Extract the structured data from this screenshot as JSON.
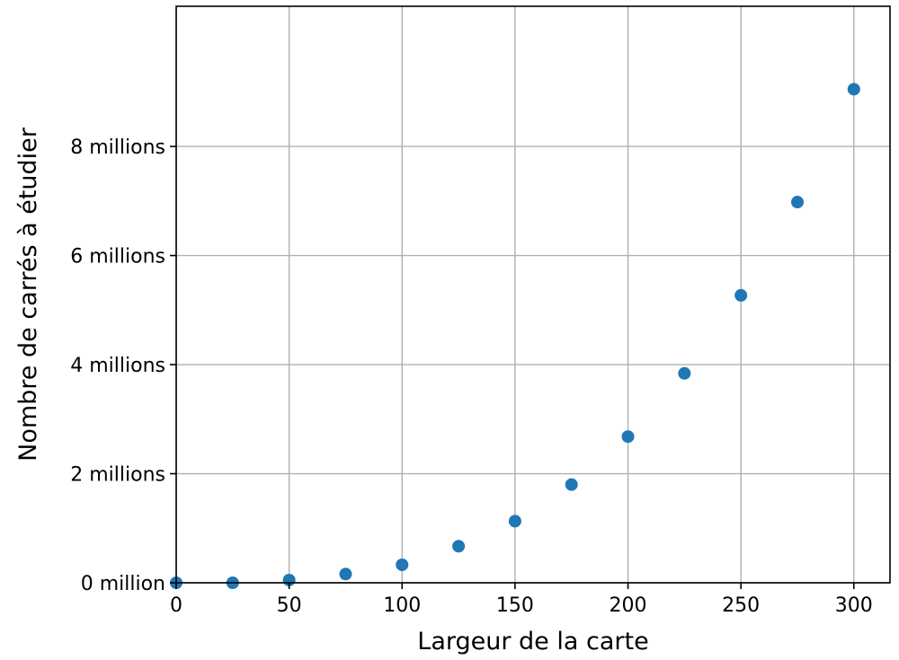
{
  "chart_data": {
    "type": "scatter",
    "title": "",
    "xlabel": "Largeur de la carte",
    "ylabel": "Nombre de carrés à étudier",
    "xlim": [
      0,
      316
    ],
    "ylim": [
      0,
      10570000
    ],
    "grid": true,
    "marker_color": "#1f77b4",
    "x_ticks": [
      {
        "value": 0,
        "label": "0"
      },
      {
        "value": 50,
        "label": "50"
      },
      {
        "value": 100,
        "label": "100"
      },
      {
        "value": 150,
        "label": "150"
      },
      {
        "value": 200,
        "label": "200"
      },
      {
        "value": 250,
        "label": "250"
      },
      {
        "value": 300,
        "label": "300"
      }
    ],
    "y_ticks": [
      {
        "value": 0,
        "label": "0 million"
      },
      {
        "value": 2000000,
        "label": "2 millions"
      },
      {
        "value": 4000000,
        "label": "4 millions"
      },
      {
        "value": 6000000,
        "label": "6 millions"
      },
      {
        "value": 8000000,
        "label": "8 millions"
      }
    ],
    "series": [
      {
        "x": [
          0,
          25,
          50,
          75,
          100,
          125,
          150,
          175,
          200,
          225,
          250,
          275,
          300
        ],
        "y": [
          0,
          0,
          50000,
          160000,
          330000,
          670000,
          1130000,
          1800000,
          2680000,
          3840000,
          5270000,
          6980000,
          9050000
        ]
      }
    ]
  }
}
